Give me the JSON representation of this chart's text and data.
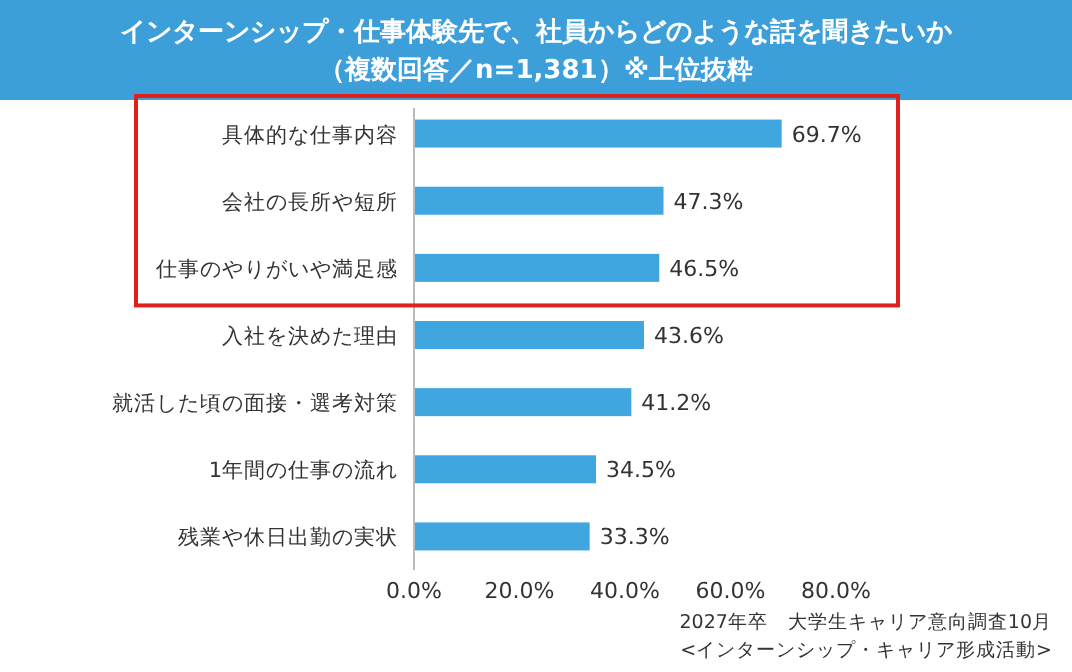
{
  "chart_data": {
    "type": "bar",
    "orientation": "horizontal",
    "title": "インターンシップ・仕事体験先で、社員からどのような話を聞きたいか",
    "subtitle": "（複数回答／n=1,381）※上位抜粋",
    "categories": [
      "具体的な仕事内容",
      "会社の長所や短所",
      "仕事のやりがいや満足感",
      "入社を決めた理由",
      "就活した頃の面接・選考対策",
      "1年間の仕事の流れ",
      "残業や休日出勤の実状"
    ],
    "values": [
      69.7,
      47.3,
      46.5,
      43.6,
      41.2,
      34.5,
      33.3
    ],
    "value_labels": [
      "69.7%",
      "47.3%",
      "46.5%",
      "43.6%",
      "41.2%",
      "34.5%",
      "33.3%"
    ],
    "color": "#3fa6e0",
    "xlim": [
      0,
      80
    ],
    "xticks": [
      {
        "value": 0,
        "label": "0.0%"
      },
      {
        "value": 20,
        "label": "20.0%"
      },
      {
        "value": 40,
        "label": "40.0%"
      },
      {
        "value": 60,
        "label": "60.0%"
      },
      {
        "value": 80,
        "label": "80.0%"
      }
    ],
    "grid": false,
    "annotations": [
      "2027年卒　大学生キャリア意向調査10月",
      "<インターンシップ・キャリア形成活動>"
    ]
  }
}
